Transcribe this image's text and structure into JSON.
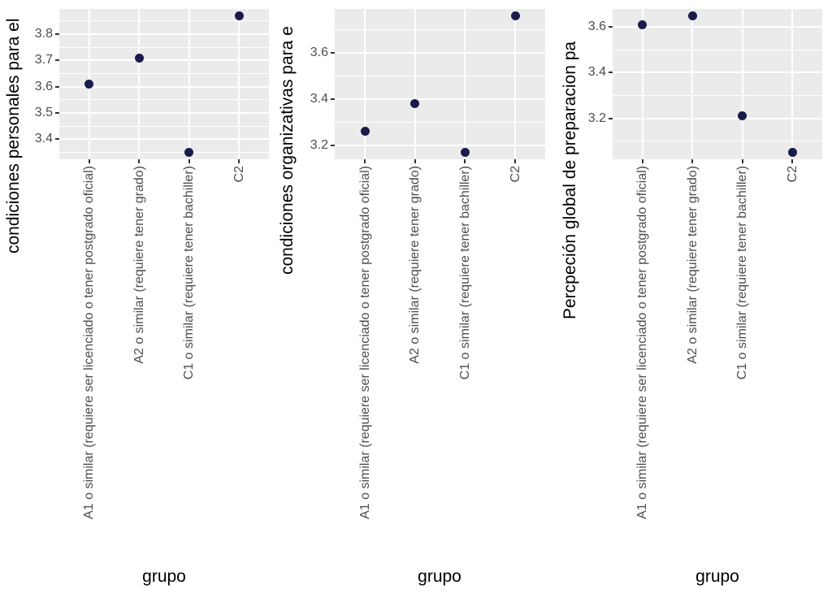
{
  "figure": {
    "background_color": "#ffffff",
    "panel_background_color": "#ebebeb",
    "gridline_color": "#ffffff",
    "point_color": "#1a1b4b",
    "tick_mark_color": "#333333",
    "tick_label_color": "#4d4d4d",
    "axis_title_color": "#000000"
  },
  "chart_data": [
    {
      "type": "scatter",
      "title": "",
      "ylabel": "condiciones personales para el",
      "xlabel": "grupo",
      "categories": [
        "A1 o similar (requiere ser licenciado o tener postgrado oficial)",
        "A2 o similar (requiere tener grado)",
        "C1 o similar (requiere tener bachiller)",
        "C2"
      ],
      "values": [
        3.61,
        3.71,
        3.35,
        3.87
      ],
      "ylim": [
        3.324,
        3.896
      ],
      "yticks": [
        3.4,
        3.5,
        3.6,
        3.7,
        3.8
      ],
      "ytick_labels": [
        "3.4",
        "3.5",
        "3.6",
        "3.7",
        "3.8"
      ],
      "yticks_minor": [
        3.35,
        3.45,
        3.55,
        3.65,
        3.75,
        3.85
      ],
      "grid": "major-and-minor",
      "legend": "none"
    },
    {
      "type": "scatter",
      "title": "",
      "ylabel": "condiciones organizativas para e",
      "xlabel": "grupo",
      "categories": [
        "A1 o similar (requiere ser licenciado o tener postgrado oficial)",
        "A2 o similar (requiere tener grado)",
        "C1 o similar (requiere tener bachiller)",
        "C2"
      ],
      "values": [
        3.26,
        3.38,
        3.17,
        3.76
      ],
      "ylim": [
        3.14,
        3.79
      ],
      "yticks": [
        3.2,
        3.4,
        3.6
      ],
      "ytick_labels": [
        "3.2",
        "3.4",
        "3.6"
      ],
      "yticks_minor": [
        3.3,
        3.5,
        3.7
      ],
      "grid": "major-and-minor",
      "legend": "none"
    },
    {
      "type": "scatter",
      "title": "",
      "ylabel": "Percpeción global de preparacion pa",
      "xlabel": "grupo",
      "categories": [
        "A1 o similar (requiere ser licenciado o tener postgrado oficial)",
        "A2 o similar (requiere tener grado)",
        "C1 o similar (requiere tener bachiller)",
        "C2"
      ],
      "values": [
        3.61,
        3.65,
        3.21,
        3.05
      ],
      "ylim": [
        3.02,
        3.68
      ],
      "yticks": [
        3.2,
        3.4,
        3.6
      ],
      "ytick_labels": [
        "3.2",
        "3.4",
        "3.6"
      ],
      "yticks_minor": [
        3.1,
        3.3,
        3.5
      ],
      "grid": "major-and-minor",
      "legend": "none"
    }
  ]
}
